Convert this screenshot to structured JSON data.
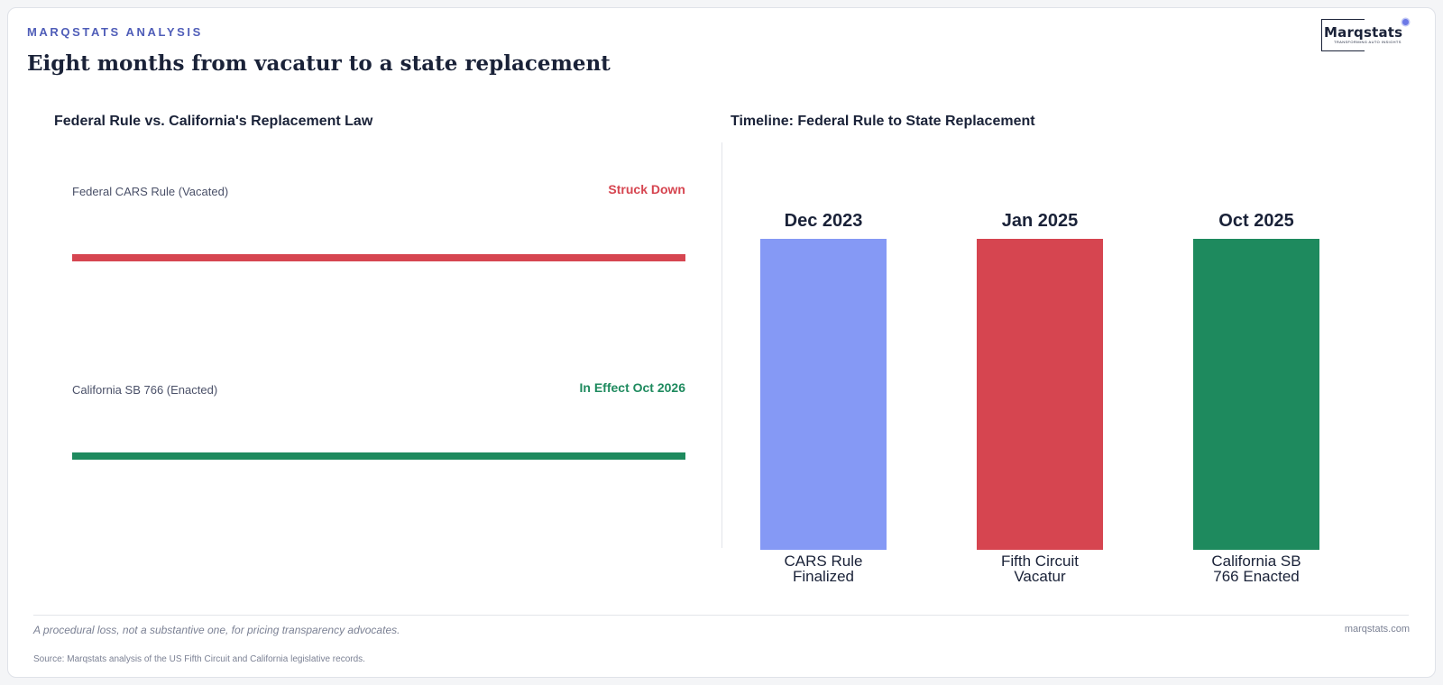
{
  "header": {
    "eyebrow": "MARQSTATS ANALYSIS",
    "title": "Eight months from vacatur to a state replacement"
  },
  "logo": {
    "word": "Marqstats",
    "tagline": "TRANSFORMING AUTO INSIGHTS"
  },
  "colors": {
    "vacated": "#d64550",
    "enacted": "#1e8a5e",
    "finalized": "#8599f5",
    "accent": "#4f5db8"
  },
  "chart_data": [
    {
      "type": "table",
      "title": "Federal Rule vs. California's Replacement Law",
      "rows": [
        {
          "label": "Federal CARS Rule (Vacated)",
          "status": "Struck Down",
          "color": "#d64550"
        },
        {
          "label": "California SB 766 (Enacted)",
          "status": "In Effect Oct 2026",
          "color": "#1e8a5e"
        }
      ]
    },
    {
      "type": "bar",
      "title": "Timeline: Federal Rule to State Replacement",
      "categories": [
        "CARS Rule\nFinalized",
        "Fifth Circuit\nVacatur",
        "California SB\n766 Enacted"
      ],
      "data_labels": [
        "Dec 2023",
        "Jan 2025",
        "Oct 2025"
      ],
      "values": [
        1,
        1,
        1
      ],
      "colors": [
        "#8599f5",
        "#d64550",
        "#1e8a5e"
      ],
      "ylim": [
        0,
        1
      ],
      "grid": false
    }
  ],
  "footer": {
    "note": "A procedural loss, not a substantive one, for pricing transparency advocates.",
    "domain": "marqstats.com",
    "source": "Source: Marqstats analysis of the US Fifth Circuit and California legislative records."
  }
}
